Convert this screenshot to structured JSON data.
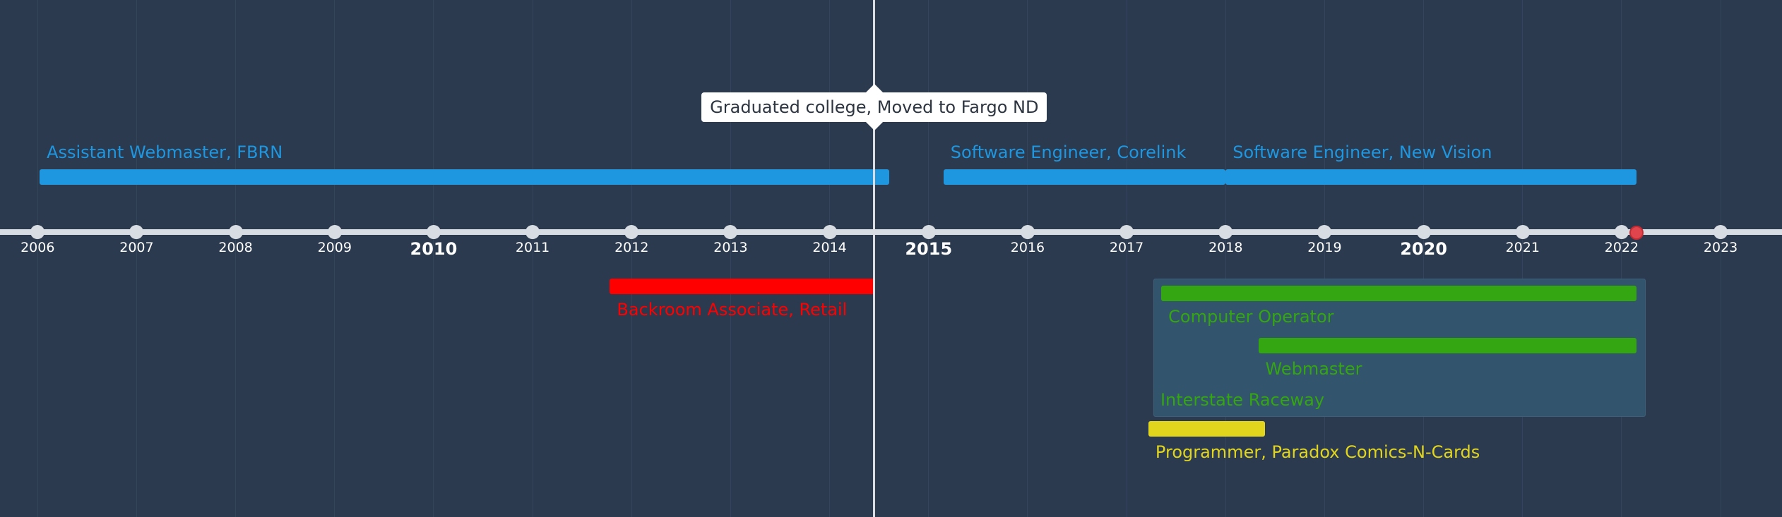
{
  "colors": {
    "background": "#2b3a4e",
    "axis": "#d8dde3",
    "blue": "#1e97e0",
    "red": "#ff0000",
    "green": "#34a611",
    "yellow": "#e2d51d",
    "now": "#e0444c"
  },
  "axis": {
    "years": [
      2006,
      2007,
      2008,
      2009,
      2010,
      2011,
      2012,
      2013,
      2014,
      2015,
      2016,
      2017,
      2018,
      2019,
      2020,
      2021,
      2022,
      2023
    ],
    "labels": [
      "2006",
      "2007",
      "2008",
      "2009",
      "2010",
      "2011",
      "2012",
      "2013",
      "2014",
      "2015",
      "2016",
      "2017",
      "2018",
      "2019",
      "2020",
      "2021",
      "2022",
      "2023"
    ],
    "major_years": [
      2010,
      2015,
      2020
    ],
    "range": [
      2005.62,
      2023.62
    ],
    "now": 2022.15
  },
  "marker": {
    "year": 2014.45,
    "label": "Graduated college, Moved to Fargo ND"
  },
  "events": [
    {
      "label": "Assistant Webmaster, FBRN",
      "start": 2006.02,
      "end": 2014.6,
      "color": "blue",
      "side": "above"
    },
    {
      "label": "Software Engineer, Corelink",
      "start": 2015.15,
      "end": 2018.0,
      "color": "blue",
      "side": "above"
    },
    {
      "label": "Software Engineer, New Vision",
      "start": 2018.0,
      "end": 2022.15,
      "color": "blue",
      "side": "above"
    },
    {
      "label": "Backroom Associate, Retail",
      "start": 2011.78,
      "end": 2014.45,
      "color": "red",
      "side": "below"
    },
    {
      "label": "Programmer, Paradox Comics-N-Cards",
      "start": 2017.22,
      "end": 2018.4,
      "color": "yellow",
      "side": "below"
    }
  ],
  "group": {
    "label": "Interstate Raceway",
    "start": 2017.27,
    "end": 2022.23,
    "items": [
      {
        "label": "Computer Operator",
        "start": 2017.35,
        "end": 2022.15,
        "color": "green"
      },
      {
        "label": "Webmaster",
        "start": 2018.33,
        "end": 2022.15,
        "color": "green"
      }
    ]
  }
}
